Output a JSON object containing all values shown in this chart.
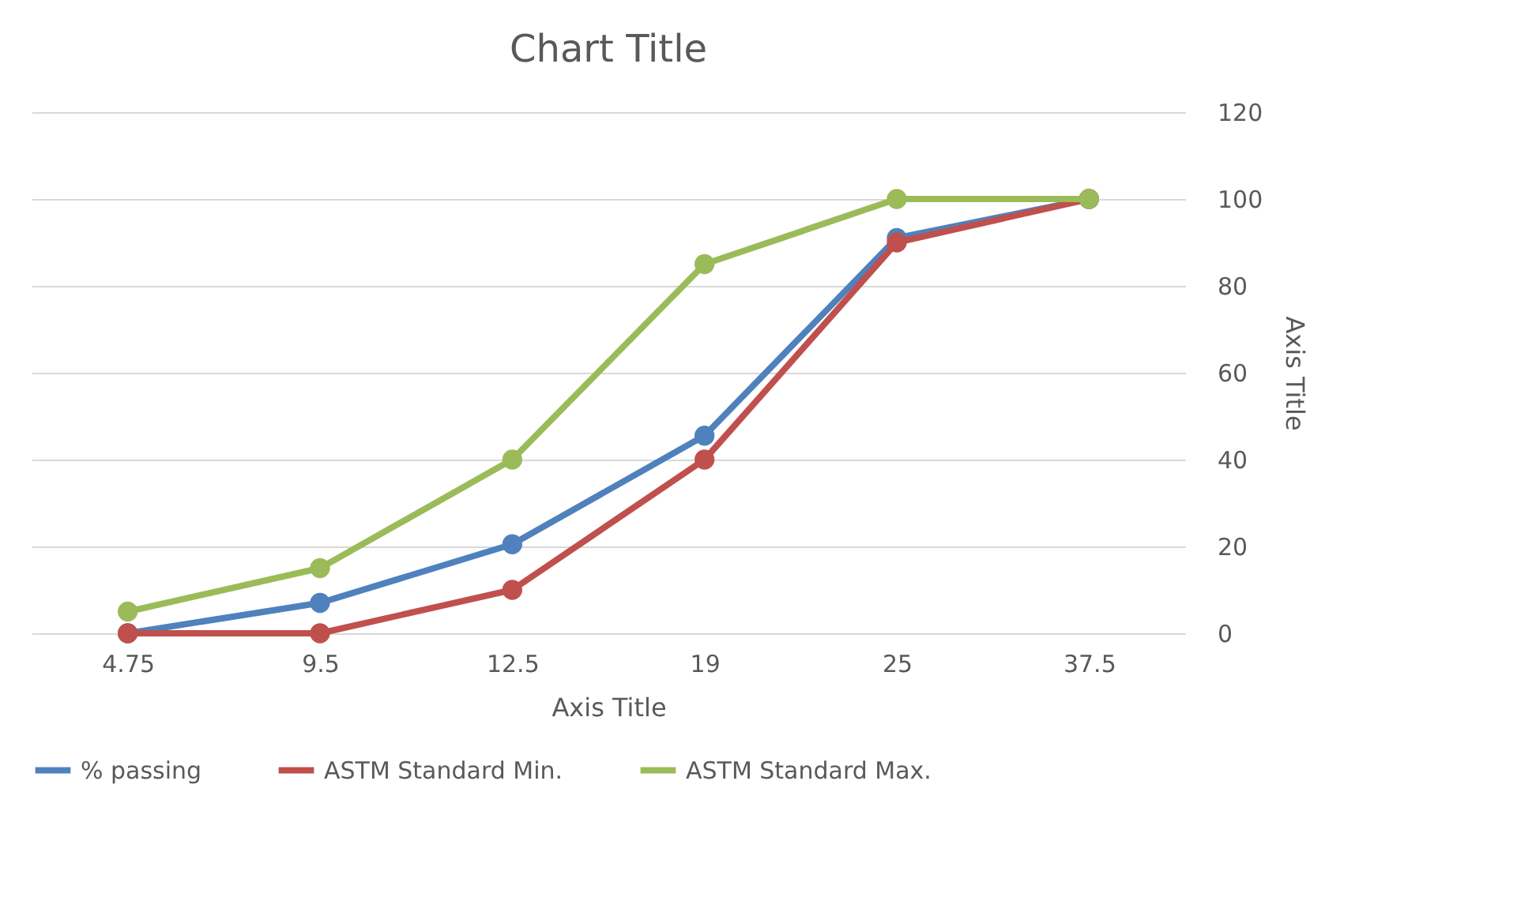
{
  "chart_data": {
    "type": "line",
    "title": "Chart Title",
    "xlabel": "Axis Title",
    "ylabel": "Axis Title",
    "categories": [
      "4.75",
      "9.5",
      "12.5",
      "19",
      "25",
      "37.5"
    ],
    "series": [
      {
        "name": "% passing",
        "color": "#4f81bd",
        "values": [
          0,
          7,
          20.5,
          45.5,
          91,
          100
        ]
      },
      {
        "name": "ASTM Standard Min.",
        "color": "#c0504d",
        "values": [
          0,
          0,
          10,
          40,
          90,
          100
        ]
      },
      {
        "name": "ASTM Standard Max.",
        "color": "#9bbb59",
        "values": [
          5,
          15,
          40,
          85,
          100,
          100
        ]
      }
    ],
    "ylim": [
      0,
      120
    ],
    "yticks": [
      0,
      20,
      40,
      60,
      80,
      100,
      120
    ],
    "grid": "y",
    "legend": "bottom",
    "marker": "circle",
    "line_style": "solid"
  }
}
